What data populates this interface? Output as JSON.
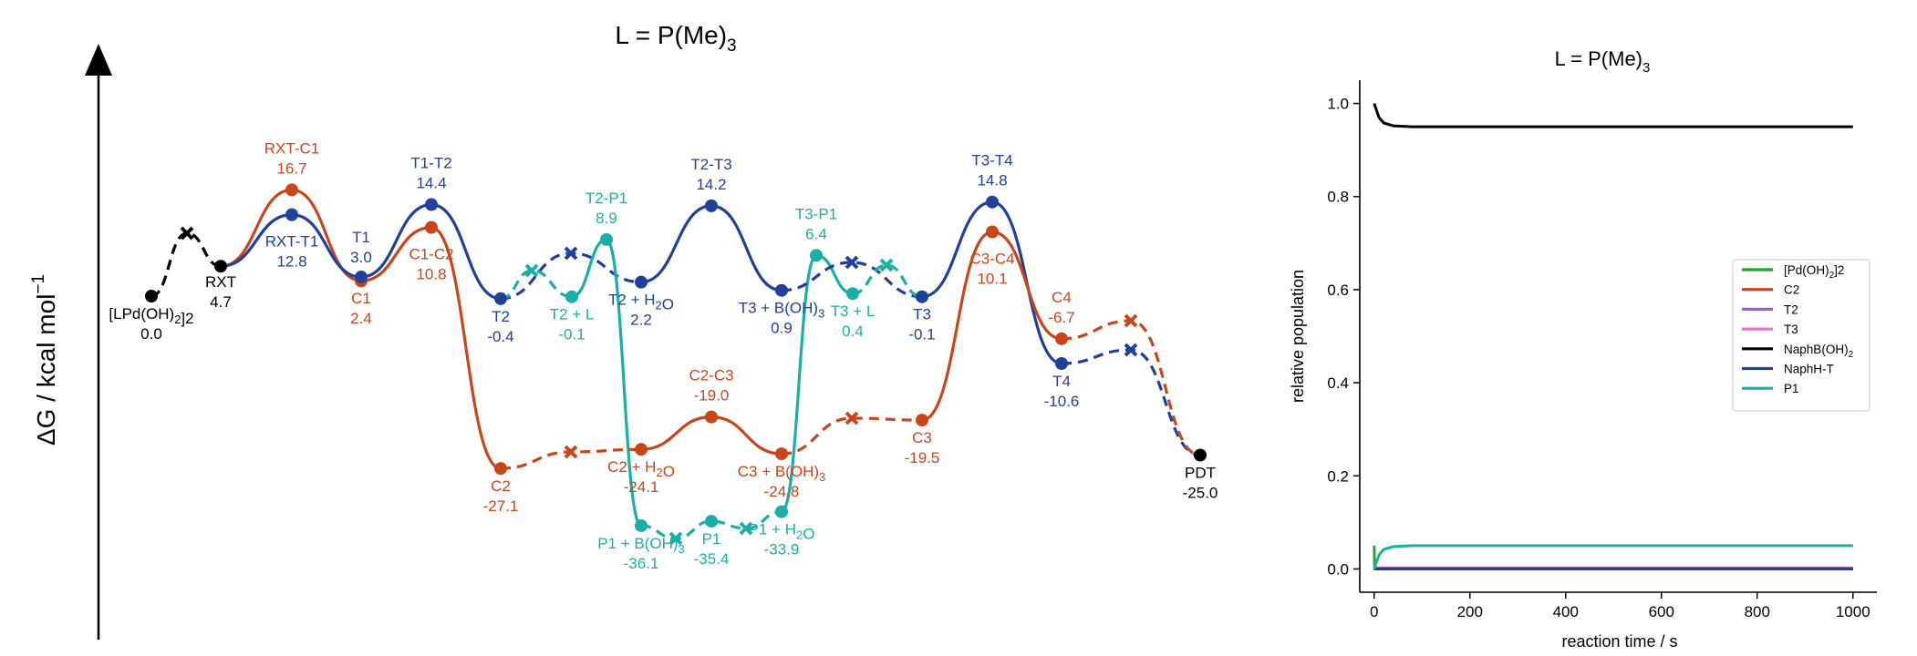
{
  "figure": {
    "left_title": "L = P(Me)3",
    "right_title": "L = P(Me)3"
  },
  "chart_data": [
    {
      "type": "line",
      "subtype": "free-energy-profile",
      "title": "L = P(Me)3",
      "ylabel": "ΔG / kcal mol-1",
      "xlabel": "",
      "colors": {
        "black": "#000000",
        "orange": "#c9461a",
        "blue": "#21409a",
        "teal": "#1aafa6"
      },
      "states": [
        {
          "id": "lpd",
          "label": "[LPd(OH)2]2",
          "value": 0.0,
          "value_text": "0.0",
          "color": "black",
          "label_pos": "below"
        },
        {
          "id": "rxt",
          "label": "RXT",
          "value": 4.7,
          "value_text": "4.7",
          "color": "black",
          "label_pos": "below"
        },
        {
          "id": "rxtc1",
          "label": "RXT-C1",
          "value": 16.7,
          "value_text": "16.7",
          "color": "orange",
          "label_pos": "above"
        },
        {
          "id": "rxtt1",
          "label": "RXT-T1",
          "value": 12.8,
          "value_text": "12.8",
          "color": "blue",
          "label_pos": "below"
        },
        {
          "id": "c1",
          "label": "C1",
          "value": 2.4,
          "value_text": "2.4",
          "color": "orange",
          "label_pos": "below"
        },
        {
          "id": "t1",
          "label": "T1",
          "value": 3.0,
          "value_text": "3.0",
          "color": "blue",
          "label_pos": "above"
        },
        {
          "id": "t1t2",
          "label": "T1-T2",
          "value": 14.4,
          "value_text": "14.4",
          "color": "blue",
          "label_pos": "above"
        },
        {
          "id": "c1c2",
          "label": "C1-C2",
          "value": 10.8,
          "value_text": "10.8",
          "color": "orange",
          "label_pos": "below"
        },
        {
          "id": "t2",
          "label": "T2",
          "value": -0.4,
          "value_text": "-0.4",
          "color": "blue",
          "label_pos": "below"
        },
        {
          "id": "t2l",
          "label": "T2 + L",
          "value": -0.1,
          "value_text": "-0.1",
          "color": "teal",
          "label_pos": "below"
        },
        {
          "id": "t2p1",
          "label": "T2-P1",
          "value": 8.9,
          "value_text": "8.9",
          "color": "teal",
          "label_pos": "above"
        },
        {
          "id": "t2h2o",
          "label": "T2 + H2O",
          "value": 2.2,
          "value_text": "2.2",
          "color": "blue",
          "label_pos": "below"
        },
        {
          "id": "t2t3",
          "label": "T2-T3",
          "value": 14.2,
          "value_text": "14.2",
          "color": "blue",
          "label_pos": "above"
        },
        {
          "id": "t3boh",
          "label": "T3 + B(OH)3",
          "value": 0.9,
          "value_text": "0.9",
          "color": "blue",
          "label_pos": "below"
        },
        {
          "id": "t3p1",
          "label": "T3-P1",
          "value": 6.4,
          "value_text": "6.4",
          "color": "teal",
          "label_pos": "above"
        },
        {
          "id": "t3l",
          "label": "T3 + L",
          "value": 0.4,
          "value_text": "0.4",
          "color": "teal",
          "label_pos": "below"
        },
        {
          "id": "t3",
          "label": "T3",
          "value": -0.1,
          "value_text": "-0.1",
          "color": "blue",
          "label_pos": "below"
        },
        {
          "id": "t3t4",
          "label": "T3-T4",
          "value": 14.8,
          "value_text": "14.8",
          "color": "blue",
          "label_pos": "above"
        },
        {
          "id": "c3c4",
          "label": "C3-C4",
          "value": 10.1,
          "value_text": "10.1",
          "color": "orange",
          "label_pos": "below"
        },
        {
          "id": "c4",
          "label": "C4",
          "value": -6.7,
          "value_text": "-6.7",
          "color": "orange",
          "label_pos": "above"
        },
        {
          "id": "t4",
          "label": "T4",
          "value": -10.6,
          "value_text": "-10.6",
          "color": "blue",
          "label_pos": "below"
        },
        {
          "id": "pdt",
          "label": "PDT",
          "value": -25.0,
          "value_text": "-25.0",
          "color": "black",
          "label_pos": "below"
        },
        {
          "id": "c2",
          "label": "C2",
          "value": -27.1,
          "value_text": "-27.1",
          "color": "orange",
          "label_pos": "below"
        },
        {
          "id": "c2h2o",
          "label": "C2 + H2O",
          "value": -24.1,
          "value_text": "-24.1",
          "color": "orange",
          "label_pos": "below"
        },
        {
          "id": "c2c3",
          "label": "C2-C3",
          "value": -19.0,
          "value_text": "-19.0",
          "color": "orange",
          "label_pos": "above"
        },
        {
          "id": "c3boh",
          "label": "C3 + B(OH)3",
          "value": -24.8,
          "value_text": "-24.8",
          "color": "orange",
          "label_pos": "below"
        },
        {
          "id": "c3",
          "label": "C3",
          "value": -19.5,
          "value_text": "-19.5",
          "color": "orange",
          "label_pos": "below"
        },
        {
          "id": "p1boh",
          "label": "P1 + B(OH)3",
          "value": -36.1,
          "value_text": "-36.1",
          "color": "teal",
          "label_pos": "below"
        },
        {
          "id": "p1",
          "label": "P1",
          "value": -35.4,
          "value_text": "-35.4",
          "color": "teal",
          "label_pos": "below"
        },
        {
          "id": "p1h2o",
          "label": "P1 + H2O",
          "value": -33.9,
          "value_text": "-33.9",
          "color": "teal",
          "label_pos": "below"
        }
      ]
    },
    {
      "type": "line",
      "title": "L = P(Me)3",
      "xlabel": "reaction time / s",
      "ylabel": "relative population",
      "xlim": [
        -30,
        1050
      ],
      "ylim": [
        -0.05,
        1.05
      ],
      "xticks": [
        "0",
        "200",
        "400",
        "600",
        "800",
        "1000"
      ],
      "yticks": [
        "0.0",
        "0.2",
        "0.4",
        "0.6",
        "0.8",
        "1.0"
      ],
      "legend_position": "center-right",
      "series": [
        {
          "name": "[Pd(OH)2]2",
          "color": "#2ca02c",
          "x": [
            0,
            1,
            1000
          ],
          "y": [
            0.05,
            0.0,
            0.0
          ]
        },
        {
          "name": "C2",
          "color": "#c9461a",
          "x": [
            0,
            1000
          ],
          "y": [
            0.002,
            0.002
          ]
        },
        {
          "name": "T2",
          "color": "#9467bd",
          "x": [
            0,
            1000
          ],
          "y": [
            0.001,
            0.001
          ]
        },
        {
          "name": "T3",
          "color": "#e377c2",
          "x": [
            0,
            1000
          ],
          "y": [
            0.0,
            0.0
          ]
        },
        {
          "name": "NaphB(OH)2",
          "color": "#000000",
          "x": [
            0,
            5,
            10,
            20,
            40,
            80,
            150,
            300,
            1000
          ],
          "y": [
            1.0,
            0.985,
            0.97,
            0.958,
            0.952,
            0.95,
            0.95,
            0.95,
            0.95
          ]
        },
        {
          "name": "NaphH-T",
          "color": "#21409a",
          "x": [
            0,
            1000
          ],
          "y": [
            0.0,
            0.0
          ]
        },
        {
          "name": "P1",
          "color": "#1aafa6",
          "x": [
            0,
            5,
            10,
            20,
            40,
            80,
            150,
            300,
            1000
          ],
          "y": [
            0.0,
            0.015,
            0.03,
            0.042,
            0.048,
            0.05,
            0.05,
            0.05,
            0.05
          ]
        }
      ]
    }
  ]
}
